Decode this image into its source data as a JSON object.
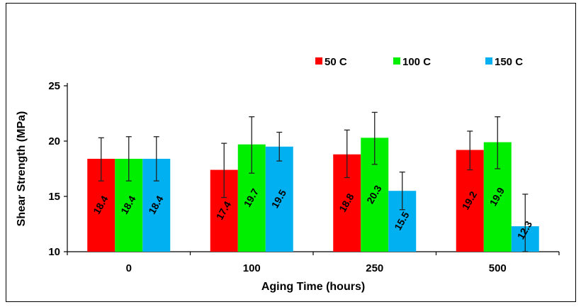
{
  "chart_data": {
    "type": "bar",
    "title": "",
    "xlabel": "Aging Time (hours)",
    "ylabel": "Shear Strength (MPa)",
    "ylim": [
      10,
      25
    ],
    "yticks": [
      "10",
      "15",
      "20",
      "25"
    ],
    "categories": [
      "0",
      "100",
      "250",
      "500"
    ],
    "legend_position": "top-right",
    "grid": false,
    "series": [
      {
        "name": "50 C",
        "color": "#ff0000",
        "values": [
          18.4,
          17.4,
          18.8,
          19.2
        ],
        "labels": [
          "18.4",
          "17.4",
          "18.8",
          "19.2"
        ],
        "err_low": [
          16.4,
          14.9,
          16.7,
          17.4
        ],
        "err_high": [
          20.3,
          19.8,
          21.0,
          20.9
        ]
      },
      {
        "name": "100 C",
        "color": "#00ee00",
        "values": [
          18.4,
          19.7,
          20.3,
          19.9
        ],
        "labels": [
          "18.4",
          "19.7",
          "20.3",
          "19.9"
        ],
        "err_low": [
          16.4,
          17.1,
          17.9,
          17.5
        ],
        "err_high": [
          20.4,
          22.2,
          22.6,
          22.2
        ]
      },
      {
        "name": "150 C",
        "color": "#00b0f0",
        "values": [
          18.4,
          19.5,
          15.5,
          12.3
        ],
        "labels": [
          "18.4",
          "19.5",
          "15.5",
          "12.3"
        ],
        "err_low": [
          16.4,
          18.2,
          13.8,
          10.0
        ],
        "err_high": [
          20.4,
          20.8,
          17.2,
          15.2
        ]
      }
    ]
  }
}
